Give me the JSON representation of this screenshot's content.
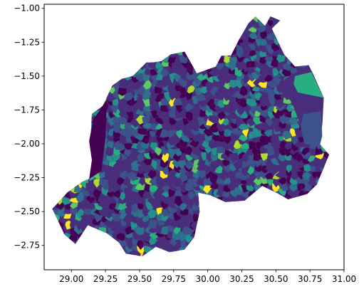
{
  "figure": {
    "type": "choropleth-map",
    "xlim": [
      28.8,
      31.0
    ],
    "ylim": [
      -2.93,
      -0.97
    ],
    "grid": false,
    "legend": "none",
    "colormap": "viridis",
    "colors": {
      "frame": "#000000",
      "background": "#ffffff",
      "boundary": "#5a3d7a",
      "viridis": [
        "#440154",
        "#472d7b",
        "#3b528b",
        "#2c728e",
        "#21918c",
        "#28ae80",
        "#5ec962",
        "#addc30",
        "#fde725"
      ]
    },
    "x_ticks": [
      {
        "value": 29.0,
        "label": "29.00"
      },
      {
        "value": 29.25,
        "label": "29.25"
      },
      {
        "value": 29.5,
        "label": "29.50"
      },
      {
        "value": 29.75,
        "label": "29.75"
      },
      {
        "value": 30.0,
        "label": "30.00"
      },
      {
        "value": 30.25,
        "label": "30.25"
      },
      {
        "value": 30.5,
        "label": "30.50"
      },
      {
        "value": 30.75,
        "label": "30.75"
      },
      {
        "value": 31.0,
        "label": "31.00"
      }
    ],
    "y_ticks": [
      {
        "value": -1.0,
        "label": "−1.00"
      },
      {
        "value": -1.25,
        "label": "−1.25"
      },
      {
        "value": -1.5,
        "label": "−1.50"
      },
      {
        "value": -1.75,
        "label": "−1.75"
      },
      {
        "value": -2.0,
        "label": "−2.00"
      },
      {
        "value": -2.25,
        "label": "−2.25"
      },
      {
        "value": -2.5,
        "label": "−2.50"
      },
      {
        "value": -2.75,
        "label": "−2.75"
      }
    ],
    "country_outline": [
      [
        30.46,
        -1.06
      ],
      [
        30.53,
        -1.09
      ],
      [
        30.47,
        -1.15
      ],
      [
        30.56,
        -1.34
      ],
      [
        30.64,
        -1.43
      ],
      [
        30.74,
        -1.42
      ],
      [
        30.77,
        -1.48
      ],
      [
        30.85,
        -1.66
      ],
      [
        30.84,
        -1.85
      ],
      [
        30.82,
        -2.0
      ],
      [
        30.89,
        -2.08
      ],
      [
        30.8,
        -2.3
      ],
      [
        30.73,
        -2.37
      ],
      [
        30.59,
        -2.41
      ],
      [
        30.52,
        -2.37
      ],
      [
        30.4,
        -2.31
      ],
      [
        30.27,
        -2.42
      ],
      [
        30.13,
        -2.43
      ],
      [
        30.02,
        -2.38
      ],
      [
        29.93,
        -2.36
      ],
      [
        29.94,
        -2.5
      ],
      [
        29.9,
        -2.69
      ],
      [
        29.83,
        -2.78
      ],
      [
        29.72,
        -2.8
      ],
      [
        29.62,
        -2.76
      ],
      [
        29.52,
        -2.83
      ],
      [
        29.4,
        -2.81
      ],
      [
        29.35,
        -2.73
      ],
      [
        29.26,
        -2.66
      ],
      [
        29.12,
        -2.6
      ],
      [
        29.03,
        -2.74
      ],
      [
        28.95,
        -2.67
      ],
      [
        28.86,
        -2.48
      ],
      [
        28.97,
        -2.36
      ],
      [
        29.08,
        -2.28
      ],
      [
        29.15,
        -2.25
      ],
      [
        29.16,
        -2.1
      ],
      [
        29.14,
        -1.97
      ],
      [
        29.15,
        -1.78
      ],
      [
        29.23,
        -1.72
      ],
      [
        29.3,
        -1.57
      ],
      [
        29.37,
        -1.52
      ],
      [
        29.45,
        -1.5
      ],
      [
        29.55,
        -1.4
      ],
      [
        29.6,
        -1.4
      ],
      [
        29.66,
        -1.39
      ],
      [
        29.73,
        -1.34
      ],
      [
        29.83,
        -1.32
      ],
      [
        29.92,
        -1.48
      ],
      [
        30.06,
        -1.43
      ],
      [
        30.1,
        -1.35
      ],
      [
        30.17,
        -1.35
      ],
      [
        30.23,
        -1.23
      ],
      [
        30.3,
        -1.11
      ],
      [
        30.35,
        -1.06
      ],
      [
        30.42,
        -1.13
      ],
      [
        30.46,
        -1.06
      ]
    ],
    "lake_kivu_region": [
      [
        29.26,
        -1.67
      ],
      [
        29.21,
        -1.75
      ],
      [
        29.16,
        -1.82
      ],
      [
        29.13,
        -1.98
      ],
      [
        29.15,
        -2.12
      ],
      [
        29.13,
        -2.26
      ],
      [
        29.22,
        -2.2
      ],
      [
        29.25,
        -1.95
      ],
      [
        29.26,
        -1.67
      ]
    ],
    "east_region": [
      [
        30.57,
        -1.52
      ],
      [
        30.74,
        -1.42
      ],
      [
        30.77,
        -1.48
      ],
      [
        30.85,
        -1.66
      ],
      [
        30.84,
        -1.85
      ],
      [
        30.82,
        -2.0
      ],
      [
        30.72,
        -1.98
      ],
      [
        30.68,
        -1.86
      ],
      [
        30.62,
        -1.7
      ],
      [
        30.55,
        -1.6
      ]
    ],
    "east_green_region": [
      [
        30.64,
        -1.5
      ],
      [
        30.76,
        -1.47
      ],
      [
        30.85,
        -1.66
      ],
      [
        30.75,
        -1.64
      ],
      [
        30.66,
        -1.62
      ],
      [
        30.63,
        -1.56
      ]
    ],
    "east_blue_region": [
      [
        30.7,
        -1.78
      ],
      [
        30.83,
        -1.76
      ],
      [
        30.84,
        -1.94
      ],
      [
        30.82,
        -2.02
      ],
      [
        30.71,
        -2.0
      ],
      [
        30.68,
        -1.88
      ]
    ]
  }
}
